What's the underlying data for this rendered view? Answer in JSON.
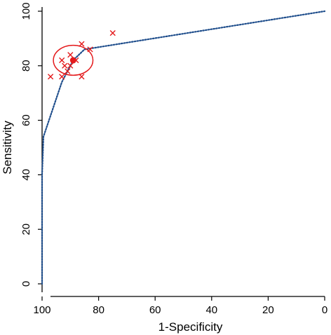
{
  "chart_data": {
    "type": "scatter",
    "title": "",
    "xlabel": "1-Specificity",
    "ylabel": "Sensitivity",
    "xlim": [
      100,
      0
    ],
    "ylim": [
      0,
      100
    ],
    "x_reversed": true,
    "x_ticks": [
      100,
      80,
      60,
      40,
      20,
      0
    ],
    "y_ticks": [
      0,
      20,
      40,
      60,
      80,
      100
    ],
    "grid": false,
    "legend": "none",
    "series": [
      {
        "type": "scatter",
        "marker": "x",
        "color": "#e41a1c",
        "points": [
          {
            "x": 75,
            "y": 92
          },
          {
            "x": 86,
            "y": 88
          },
          {
            "x": 83,
            "y": 86
          },
          {
            "x": 90,
            "y": 84
          },
          {
            "x": 93,
            "y": 82
          },
          {
            "x": 92,
            "y": 80
          },
          {
            "x": 88,
            "y": 82
          },
          {
            "x": 90,
            "y": 80
          },
          {
            "x": 97,
            "y": 76
          },
          {
            "x": 93,
            "y": 76
          },
          {
            "x": 86,
            "y": 76
          },
          {
            "x": 91,
            "y": 78
          }
        ]
      },
      {
        "type": "point",
        "marker": "filled-circle",
        "color": "#e41a1c",
        "points": [
          {
            "x": 89,
            "y": 82
          }
        ]
      },
      {
        "type": "contour",
        "color": "#e41a1c",
        "center": {
          "x": 89,
          "y": 82
        },
        "radius_x": 7,
        "radius_y": 5.5
      },
      {
        "type": "line",
        "style": "dotted",
        "color": "#1f4e8c",
        "points": [
          {
            "x": 100,
            "y": 0
          },
          {
            "x": 100,
            "y": 20
          },
          {
            "x": 100,
            "y": 40
          },
          {
            "x": 99.5,
            "y": 54
          },
          {
            "x": 93,
            "y": 74
          },
          {
            "x": 89,
            "y": 82
          },
          {
            "x": 85,
            "y": 86
          },
          {
            "x": 0,
            "y": 100
          }
        ]
      }
    ]
  }
}
